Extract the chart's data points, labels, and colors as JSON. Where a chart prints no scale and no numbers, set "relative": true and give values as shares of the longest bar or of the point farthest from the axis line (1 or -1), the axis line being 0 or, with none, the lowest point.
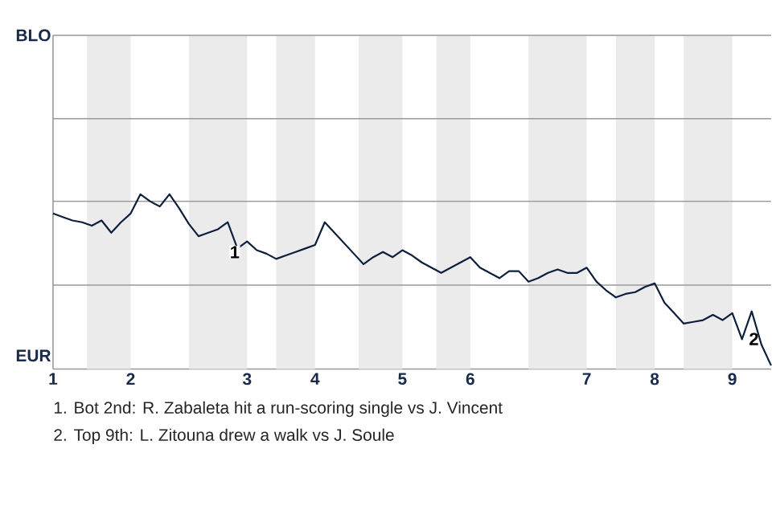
{
  "chart_data": {
    "type": "line",
    "relative": true,
    "categories": [
      "1",
      null,
      null,
      null,
      null,
      null,
      null,
      null,
      "2",
      null,
      null,
      null,
      null,
      null,
      null,
      null,
      null,
      null,
      null,
      null,
      "3",
      null,
      null,
      null,
      null,
      null,
      null,
      "4",
      null,
      null,
      null,
      null,
      null,
      null,
      null,
      null,
      "5",
      null,
      null,
      null,
      null,
      null,
      null,
      "6",
      null,
      null,
      null,
      null,
      null,
      null,
      null,
      null,
      null,
      null,
      null,
      "7",
      null,
      null,
      null,
      null,
      null,
      null,
      "8",
      null,
      null,
      null,
      null,
      null,
      null,
      null,
      "9",
      null,
      null,
      null,
      null
    ],
    "ref_lines": [
      {
        "axis": "y",
        "value": 0.48,
        "color": "#999999"
      },
      {
        "axis": "y",
        "value": 0.96,
        "color": "#999999"
      }
    ],
    "series": [
      {
        "color": "#0d1f3c",
        "values": [
          0.89,
          0.87,
          0.85,
          0.84,
          0.82,
          0.85,
          0.78,
          0.84,
          0.89,
          1.0,
          0.96,
          0.93,
          1.0,
          0.92,
          0.83,
          0.76,
          0.78,
          0.8,
          0.84,
          0.69,
          0.73,
          0.68,
          0.66,
          0.63,
          0.65,
          0.67,
          0.69,
          0.71,
          0.84,
          0.78,
          0.72,
          0.66,
          0.6,
          0.64,
          0.67,
          0.64,
          0.68,
          0.65,
          0.61,
          0.58,
          0.55,
          0.58,
          0.61,
          0.64,
          0.58,
          0.55,
          0.52,
          0.56,
          0.56,
          0.5,
          0.52,
          0.55,
          0.57,
          0.55,
          0.55,
          0.58,
          0.5,
          0.45,
          0.41,
          0.43,
          0.44,
          0.47,
          0.49,
          0.38,
          0.32,
          0.26,
          0.27,
          0.28,
          0.31,
          0.28,
          0.32,
          0.17,
          0.33,
          0.14,
          0.02
        ]
      }
    ],
    "annotations": [
      "BLO",
      "EUR",
      "1",
      "2",
      "1. Bot 2nd: R. Zabaleta hit a run-scoring single vs J. Vincent",
      "2. Top 9th: L. Zitouna drew a walk vs J. Soule"
    ]
  }
}
